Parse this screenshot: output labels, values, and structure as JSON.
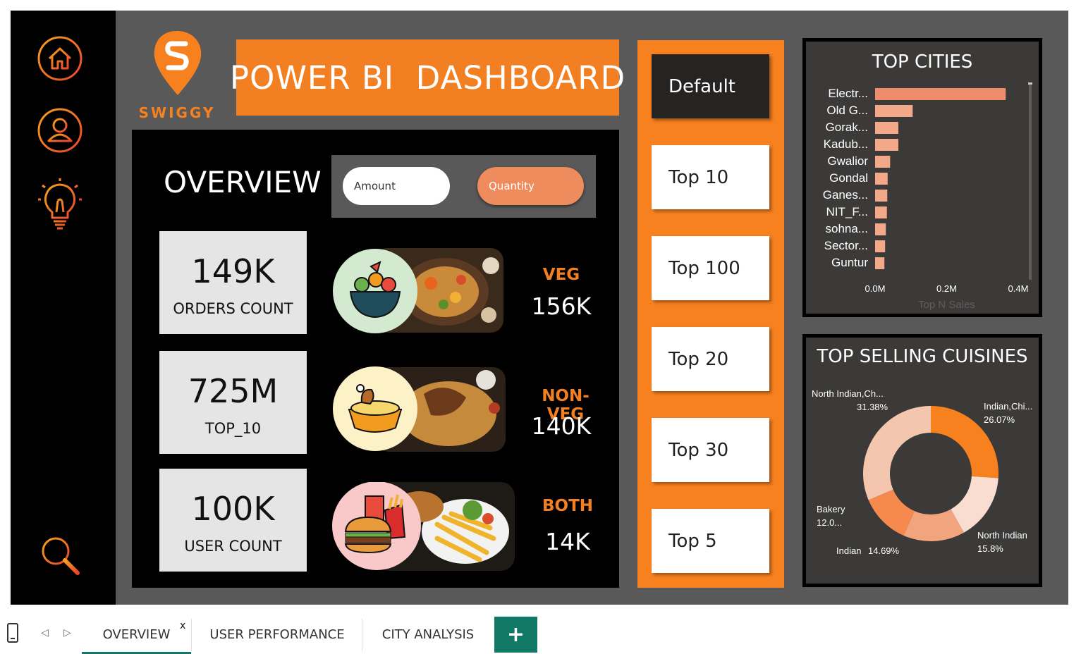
{
  "header": {
    "title": "POWER BI  DASHBOARD",
    "brand_name": "SWIGGY"
  },
  "sidebar": {
    "icons": [
      "home-icon",
      "user-icon",
      "lightbulb-icon",
      "search-icon"
    ]
  },
  "overview": {
    "title": "OVERVIEW",
    "toggle": {
      "amount_label": "Amount",
      "quantity_label": "Quantity",
      "selected": "Quantity"
    },
    "kpis": [
      {
        "value": "149K",
        "label": "ORDERS COUNT"
      },
      {
        "value": "725M",
        "label": "TOP_10"
      },
      {
        "value": "100K",
        "label": "USER COUNT"
      }
    ],
    "categories": [
      {
        "label": "VEG",
        "value": "156K"
      },
      {
        "label": "NON-VEG",
        "value": "140K"
      },
      {
        "label": "BOTH",
        "value": "14K"
      }
    ]
  },
  "slicer": {
    "items": [
      "Default",
      "Top 10",
      "Top 100",
      "Top 20",
      "Top 30",
      "Top 5"
    ],
    "selected": "Default"
  },
  "colors": {
    "accent": "#f28022",
    "bar": "#ef8c6c",
    "dark": "#3b3a39"
  },
  "chart_data": [
    {
      "type": "bar",
      "orientation": "horizontal",
      "title": "TOP CITIES",
      "xlabel": "Top N Sales",
      "categories": [
        "Electr...",
        "Old G...",
        "Gorak...",
        "Kadub...",
        "Gwalior",
        "Gondal",
        "Ganes...",
        "NIT_F...",
        "sohna...",
        "Sector...",
        "Guntur"
      ],
      "values": [
        0.365,
        0.105,
        0.065,
        0.065,
        0.042,
        0.035,
        0.034,
        0.033,
        0.03,
        0.028,
        0.026
      ],
      "xlim": [
        0,
        0.4
      ],
      "xticks": [
        "0.0M",
        "0.2M",
        "0.4M"
      ]
    },
    {
      "type": "pie",
      "donut": true,
      "title": "TOP SELLING CUISINES",
      "slices": [
        {
          "label": "Indian,Chi...",
          "percent_label": "26.07%",
          "value": 26.07,
          "color": "#f7801f"
        },
        {
          "label": "North Indian",
          "percent_label": "15.8%",
          "value": 15.8,
          "color": "#f9ddd0"
        },
        {
          "label": "Indian",
          "percent_label": "14.69%",
          "value": 14.69,
          "color": "#f2a47e"
        },
        {
          "label": "Bakery",
          "percent_label": "12.0...",
          "value": 12.06,
          "color": "#f6894e"
        },
        {
          "label": "North Indian,Ch...",
          "percent_label": "31.38%",
          "value": 31.38,
          "color": "#f4c6ae"
        }
      ]
    }
  ],
  "tabs": [
    {
      "label": "OVERVIEW",
      "close": "x"
    },
    {
      "label": "USER PERFORMANCE"
    },
    {
      "label": "CITY ANALYSIS"
    }
  ],
  "add_tab_label": "+"
}
